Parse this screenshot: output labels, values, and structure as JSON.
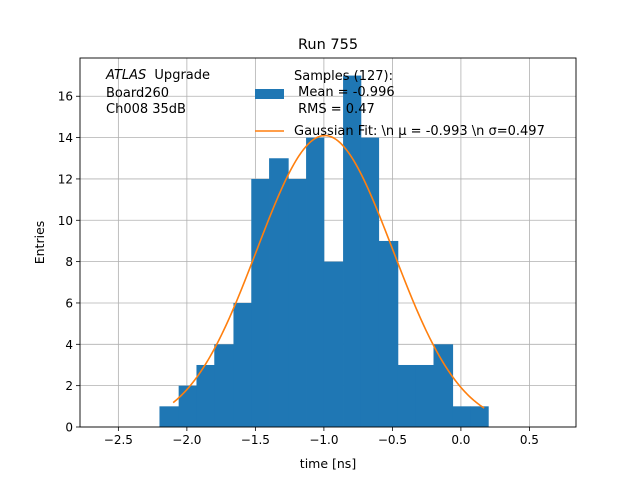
{
  "chart_data": {
    "type": "bar",
    "title": "Run 755",
    "xlabel": "time [ns]",
    "ylabel": "Entries",
    "xlim": [
      -2.78,
      0.84
    ],
    "ylim": [
      0,
      17.85
    ],
    "grid": true,
    "x_ticks": [
      -2.5,
      -2.0,
      -1.5,
      -1.0,
      -0.5,
      0.0,
      0.5
    ],
    "x_tick_labels": [
      "−2.5",
      "−2.0",
      "−1.5",
      "−1.0",
      "−0.5",
      "0.0",
      "0.5"
    ],
    "y_ticks": [
      0,
      2,
      4,
      6,
      8,
      10,
      12,
      14,
      16
    ],
    "y_tick_labels": [
      "0",
      "2",
      "4",
      "6",
      "8",
      "10",
      "12",
      "14",
      "16"
    ],
    "histogram": {
      "bin_edges": [
        -2.2,
        -2.06,
        -1.93,
        -1.8,
        -1.66,
        -1.53,
        -1.4,
        -1.26,
        -1.13,
        -1.0,
        -0.86,
        -0.73,
        -0.6,
        -0.46,
        -0.33,
        -0.2,
        -0.06,
        0.07,
        0.2,
        0.34
      ],
      "counts": [
        1,
        2,
        3,
        4,
        6,
        12,
        13,
        12,
        14,
        8,
        17,
        14,
        9,
        3,
        3,
        4,
        1,
        1,
        0
      ],
      "color": "#1f77b4"
    },
    "fit": {
      "mu": -0.993,
      "sigma": 0.497,
      "amplitude": 14.1,
      "x_range": [
        -2.1,
        0.17
      ],
      "color": "#ff7f0e"
    },
    "annotation_lines": [
      "ATLAS",
      "Upgrade",
      "Board260",
      "Ch008 35dB"
    ],
    "legend": {
      "placement": "top-right",
      "entries": [
        {
          "lines": [
            "Samples (127):",
            " Mean = -0.996",
            " RMS = 0.47"
          ],
          "kind": "patch",
          "color": "#1f77b4"
        },
        {
          "lines": [
            "Gaussian Fit: \\n μ = -0.993 \\n σ=0.497"
          ],
          "kind": "line",
          "color": "#ff7f0e"
        }
      ]
    }
  }
}
